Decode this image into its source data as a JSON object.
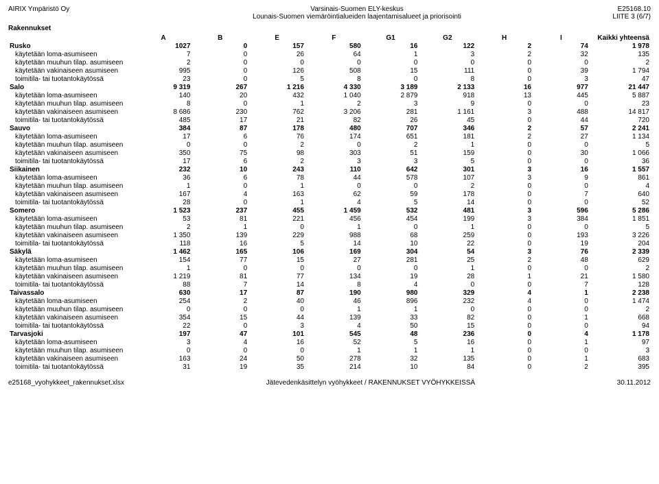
{
  "header": {
    "left_top": "AIRIX Ympäristö Oy",
    "center_top": "Varsinais-Suomen ELY-keskus",
    "right_top": "E25168.10",
    "center_sub": "Lounais-Suomen viemäröintialueiden laajentamisalueet ja priorisointi",
    "right_sub": "LIITE 3 (6/7)"
  },
  "section_title": "Rakennukset",
  "columns": [
    "A",
    "B",
    "E",
    "F",
    "G1",
    "G2",
    "H",
    "I",
    "Kaikki yhteensä"
  ],
  "groups": [
    {
      "name": "Rusko",
      "totals": [
        1027,
        0,
        157,
        580,
        16,
        122,
        2,
        74,
        "1 978"
      ],
      "rows": [
        {
          "label": "käytetään loma-asumiseen",
          "v": [
            7,
            0,
            26,
            64,
            1,
            3,
            2,
            32,
            135
          ]
        },
        {
          "label": "käytetään muuhun tilap. asumiseen",
          "v": [
            2,
            0,
            0,
            0,
            0,
            0,
            0,
            0,
            2
          ]
        },
        {
          "label": "käytetään vakinaiseen asumiseen",
          "v": [
            995,
            0,
            126,
            508,
            15,
            111,
            0,
            39,
            "1 794"
          ]
        },
        {
          "label": "toimitila- tai tuotantokäytössä",
          "v": [
            23,
            0,
            5,
            8,
            0,
            8,
            0,
            3,
            47
          ]
        }
      ]
    },
    {
      "name": "Salo",
      "totals": [
        "9 319",
        "267",
        "1 216",
        "4 330",
        "3 189",
        "2 133",
        "16",
        "977",
        "21 447"
      ],
      "rows": [
        {
          "label": "käytetään loma-asumiseen",
          "v": [
            140,
            20,
            432,
            "1 040",
            "2 879",
            918,
            13,
            445,
            "5 887"
          ]
        },
        {
          "label": "käytetään muuhun tilap. asumiseen",
          "v": [
            8,
            0,
            1,
            2,
            3,
            9,
            0,
            0,
            23
          ]
        },
        {
          "label": "käytetään vakinaiseen asumiseen",
          "v": [
            "8 686",
            230,
            762,
            "3 206",
            281,
            "1 161",
            3,
            488,
            "14 817"
          ]
        },
        {
          "label": "toimitila- tai tuotantokäytössä",
          "v": [
            485,
            17,
            21,
            82,
            26,
            45,
            0,
            44,
            720
          ]
        }
      ]
    },
    {
      "name": "Sauvo",
      "totals": [
        384,
        87,
        178,
        480,
        707,
        346,
        2,
        57,
        "2 241"
      ],
      "rows": [
        {
          "label": "käytetään loma-asumiseen",
          "v": [
            17,
            6,
            76,
            174,
            651,
            181,
            2,
            27,
            "1 134"
          ]
        },
        {
          "label": "käytetään muuhun tilap. asumiseen",
          "v": [
            0,
            0,
            2,
            0,
            2,
            1,
            0,
            0,
            5
          ]
        },
        {
          "label": "käytetään vakinaiseen asumiseen",
          "v": [
            350,
            75,
            98,
            303,
            51,
            159,
            0,
            30,
            "1 066"
          ]
        },
        {
          "label": "toimitila- tai tuotantokäytössä",
          "v": [
            17,
            6,
            2,
            3,
            3,
            5,
            0,
            0,
            36
          ]
        }
      ]
    },
    {
      "name": "Siikainen",
      "totals": [
        232,
        10,
        243,
        110,
        642,
        301,
        3,
        16,
        "1 557"
      ],
      "rows": [
        {
          "label": "käytetään loma-asumiseen",
          "v": [
            36,
            6,
            78,
            44,
            578,
            107,
            3,
            9,
            861
          ]
        },
        {
          "label": "käytetään muuhun tilap. asumiseen",
          "v": [
            1,
            0,
            1,
            0,
            0,
            2,
            0,
            0,
            4
          ]
        },
        {
          "label": "käytetään vakinaiseen asumiseen",
          "v": [
            167,
            4,
            163,
            62,
            59,
            178,
            0,
            7,
            640
          ]
        },
        {
          "label": "toimitila- tai tuotantokäytössä",
          "v": [
            28,
            0,
            1,
            4,
            5,
            14,
            0,
            0,
            52
          ]
        }
      ]
    },
    {
      "name": "Somero",
      "totals": [
        "1 523",
        237,
        455,
        "1 459",
        532,
        481,
        3,
        596,
        "5 286"
      ],
      "rows": [
        {
          "label": "käytetään loma-asumiseen",
          "v": [
            53,
            81,
            221,
            456,
            454,
            199,
            3,
            384,
            "1 851"
          ]
        },
        {
          "label": "käytetään muuhun tilap. asumiseen",
          "v": [
            2,
            1,
            0,
            1,
            0,
            1,
            0,
            0,
            5
          ]
        },
        {
          "label": "käytetään vakinaiseen asumiseen",
          "v": [
            "1 350",
            139,
            229,
            988,
            68,
            259,
            0,
            193,
            "3 226"
          ]
        },
        {
          "label": "toimitila- tai tuotantokäytössä",
          "v": [
            118,
            16,
            5,
            14,
            10,
            22,
            0,
            19,
            204
          ]
        }
      ]
    },
    {
      "name": "Säkylä",
      "totals": [
        "1 462",
        165,
        106,
        169,
        304,
        54,
        3,
        76,
        "2 339"
      ],
      "rows": [
        {
          "label": "käytetään loma-asumiseen",
          "v": [
            154,
            77,
            15,
            27,
            281,
            25,
            2,
            48,
            629
          ]
        },
        {
          "label": "käytetään muuhun tilap. asumiseen",
          "v": [
            1,
            0,
            0,
            0,
            0,
            1,
            0,
            0,
            2
          ]
        },
        {
          "label": "käytetään vakinaiseen asumiseen",
          "v": [
            "1 219",
            81,
            77,
            134,
            19,
            28,
            1,
            21,
            "1 580"
          ]
        },
        {
          "label": "toimitila- tai tuotantokäytössä",
          "v": [
            88,
            7,
            14,
            8,
            4,
            0,
            0,
            7,
            128
          ]
        }
      ]
    },
    {
      "name": "Taivassalo",
      "totals": [
        630,
        17,
        87,
        190,
        980,
        329,
        4,
        1,
        "2 238"
      ],
      "rows": [
        {
          "label": "käytetään loma-asumiseen",
          "v": [
            254,
            2,
            40,
            46,
            896,
            232,
            4,
            0,
            "1 474"
          ]
        },
        {
          "label": "käytetään muuhun tilap. asumiseen",
          "v": [
            0,
            0,
            0,
            1,
            1,
            0,
            0,
            0,
            2
          ]
        },
        {
          "label": "käytetään vakinaiseen asumiseen",
          "v": [
            354,
            15,
            44,
            139,
            33,
            82,
            0,
            1,
            668
          ]
        },
        {
          "label": "toimitila- tai tuotantokäytössä",
          "v": [
            22,
            0,
            3,
            4,
            50,
            15,
            0,
            0,
            94
          ]
        }
      ]
    },
    {
      "name": "Tarvasjoki",
      "totals": [
        197,
        47,
        101,
        545,
        48,
        236,
        0,
        4,
        "1 178"
      ],
      "rows": [
        {
          "label": "käytetään loma-asumiseen",
          "v": [
            3,
            4,
            16,
            52,
            5,
            16,
            0,
            1,
            97
          ]
        },
        {
          "label": "käytetään muuhun tilap. asumiseen",
          "v": [
            0,
            0,
            0,
            1,
            1,
            1,
            0,
            0,
            3
          ]
        },
        {
          "label": "käytetään vakinaiseen asumiseen",
          "v": [
            163,
            24,
            50,
            278,
            32,
            135,
            0,
            1,
            683
          ]
        },
        {
          "label": "toimitila- tai tuotantokäytössä",
          "v": [
            31,
            19,
            35,
            214,
            10,
            84,
            0,
            2,
            395
          ]
        }
      ]
    }
  ],
  "footer": {
    "left": "e25168_vyohykkeet_rakennukset.xlsx",
    "center": "Jätevedenkäsittelyn vyöhykkeet / RAKENNUKSET VYÖHYKKEISSÄ",
    "right": "30.11.2012"
  }
}
